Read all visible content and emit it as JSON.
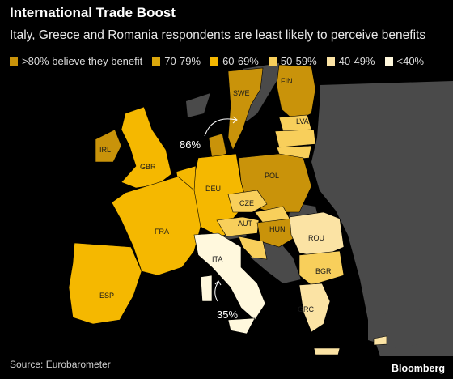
{
  "title": "International Trade Boost",
  "subtitle": "Italy, Greece and Romania respondents are least likely to perceive benefits",
  "legend": [
    {
      "label": ">80% believe they benefit",
      "color": "#c9930a"
    },
    {
      "label": "70-79%",
      "color": "#dba70c"
    },
    {
      "label": "60-69%",
      "color": "#f5b800"
    },
    {
      "label": "50-59%",
      "color": "#f8cf5b"
    },
    {
      "label": "40-49%",
      "color": "#fbe3a4"
    },
    {
      "label": "<40%",
      "color": "#fff8dd"
    }
  ],
  "annotations": {
    "high": "86%",
    "low": "35%"
  },
  "country_labels": [
    "SWE",
    "FIN",
    "LVA",
    "IRL",
    "GBR",
    "POL",
    "DEU",
    "CZE",
    "AUT",
    "HUN",
    "FRA",
    "ROU",
    "ITA",
    "BGR",
    "ESP",
    "GRC"
  ],
  "map_data": {
    "bins": [
      ">80%",
      "70-79%",
      "60-69%",
      "50-59%",
      "40-49%",
      "<40%"
    ],
    "country_bins": {
      "SWE": ">80%",
      "FIN": ">80%",
      "POL": ">80%",
      "IRL": ">80%",
      "HUN": ">80%",
      "GBR": "60-69%",
      "DEU": "60-69%",
      "FRA": "60-69%",
      "ESP": "60-69%",
      "AUT": "50-59%",
      "CZE": "50-59%",
      "LVA": "50-59%",
      "BGR": "50-59%",
      "ROU": "40-49%",
      "GRC": "40-49%",
      "ITA": "<40%"
    }
  },
  "source": "Source: Eurobarometer",
  "brand": "Bloomberg"
}
